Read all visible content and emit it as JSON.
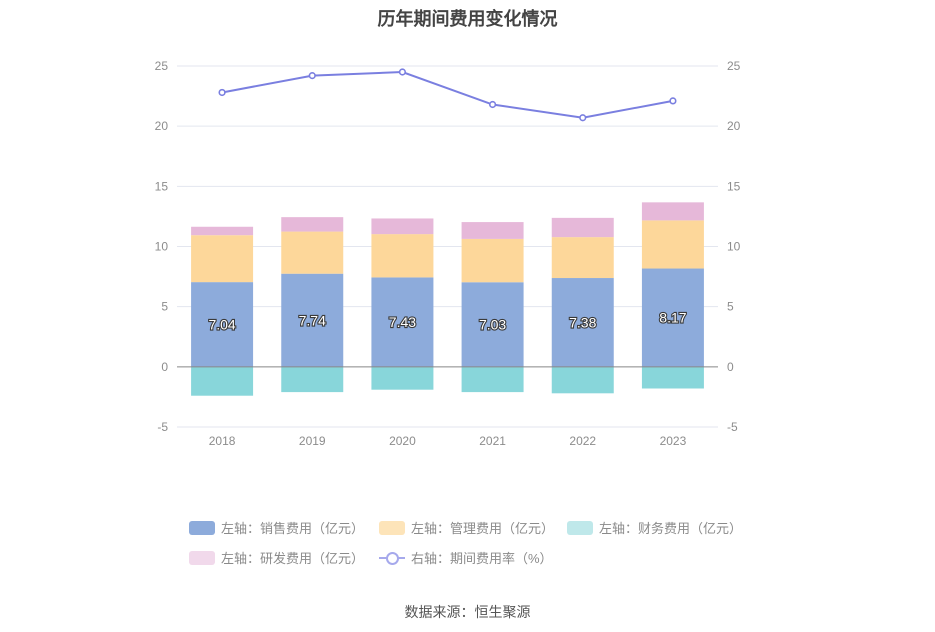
{
  "title": "历年期间费用变化情况",
  "source": "数据来源：恒生聚源",
  "chart_data": {
    "type": "bar",
    "stacked": true,
    "categories": [
      "2018",
      "2019",
      "2020",
      "2021",
      "2022",
      "2023"
    ],
    "left_axis": {
      "min": -5,
      "max": 25,
      "ticks": [
        "-5",
        "0",
        "5",
        "10",
        "15",
        "20",
        "25"
      ]
    },
    "right_axis": {
      "min": -5,
      "max": 25,
      "ticks": [
        "-5",
        "0",
        "5",
        "10",
        "15",
        "20",
        "25"
      ]
    },
    "grid": true,
    "legend_position": "bottom",
    "series": [
      {
        "name": "左轴：销售费用（亿元）",
        "color": "#8dabdb",
        "values": [
          7.04,
          7.74,
          7.43,
          7.03,
          7.38,
          8.17
        ],
        "labels": [
          "7.04",
          "7.74",
          "7.43",
          "7.03",
          "7.38",
          "8.17"
        ]
      },
      {
        "name": "左轴：管理费用（亿元）",
        "color": "#fdd79a",
        "values": [
          3.9,
          3.5,
          3.6,
          3.6,
          3.4,
          4.0
        ]
      },
      {
        "name": "左轴：财务费用（亿元）",
        "color": "#88d6da",
        "values": [
          -2.4,
          -2.1,
          -1.9,
          -2.1,
          -2.2,
          -1.8
        ]
      },
      {
        "name": "左轴：研发费用（亿元）",
        "color": "#e6b8d9",
        "values": [
          0.7,
          1.2,
          1.3,
          1.4,
          1.6,
          1.5
        ]
      },
      {
        "name": "右轴：期间费用率（%）",
        "color": "#7a7fe0",
        "type": "line",
        "axis": "right",
        "values": [
          22.8,
          24.2,
          24.5,
          21.8,
          20.7,
          22.1
        ]
      }
    ]
  }
}
